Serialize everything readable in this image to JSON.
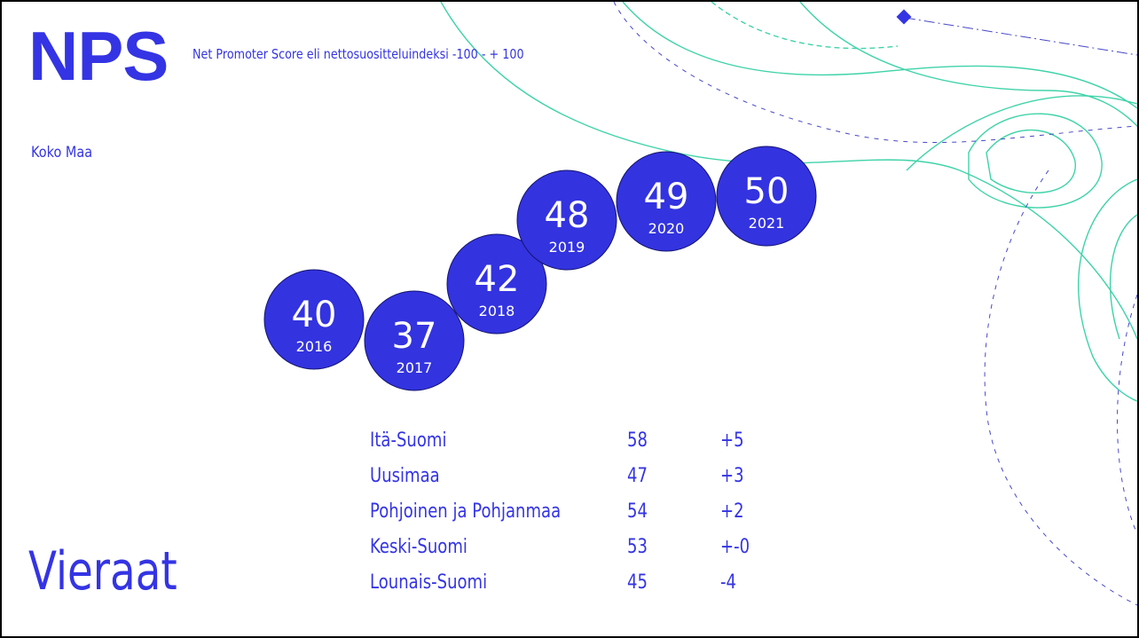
{
  "header": {
    "title": "NPS",
    "subtitle": "Net Promoter Score eli nettosuositteluindeksi -100 - + 100",
    "region": "Koko Maa",
    "section": "Vieraat"
  },
  "bubbles": [
    {
      "value": 40,
      "year": "2016"
    },
    {
      "value": 37,
      "year": "2017"
    },
    {
      "value": 42,
      "year": "2018"
    },
    {
      "value": 48,
      "year": "2019"
    },
    {
      "value": 49,
      "year": "2020"
    },
    {
      "value": 50,
      "year": "2021"
    }
  ],
  "table": {
    "rows": [
      [
        "Itä-Suomi",
        58,
        "+5"
      ],
      [
        "Uusimaa",
        47,
        "+3"
      ],
      [
        "Pohjoinen ja Pohjanmaa",
        54,
        "+2"
      ],
      [
        "Keski-Suomi",
        53,
        "+-0"
      ],
      [
        "Lounais-Suomi",
        45,
        "-4"
      ]
    ]
  }
}
